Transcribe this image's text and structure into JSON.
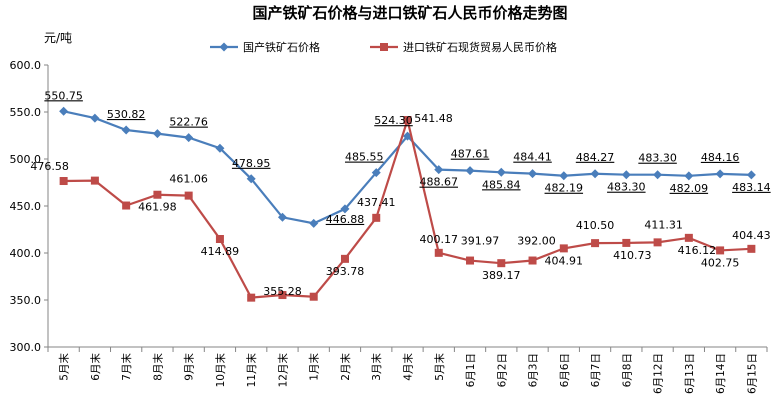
{
  "chart_data": {
    "type": "line",
    "title": "国产铁矿石价格与进口铁矿石人民币价格走势图",
    "ylabel": "元/吨",
    "xlabel": "",
    "ylim": [
      300,
      600
    ],
    "yticks": [
      "300.0",
      "350.0",
      "400.0",
      "450.0",
      "500.0",
      "550.0",
      "600.0"
    ],
    "grid": false,
    "legend_position": "top",
    "categories": [
      "5月末",
      "6月末",
      "7月末",
      "8月末",
      "9月末",
      "10月末",
      "11月末",
      "12月末",
      "1月末",
      "2月末",
      "3月末",
      "4月末",
      "5月末",
      "6月1日",
      "6月2日",
      "6月3日",
      "6月6日",
      "6月7日",
      "6月8日",
      "6月12日",
      "6月13日",
      "6月14日",
      "6月15日"
    ],
    "series": [
      {
        "name": "国产铁矿石价格",
        "color": "#4a7ebb",
        "marker": "diamond",
        "values": [
          550.75,
          543.5,
          530.82,
          527.0,
          522.76,
          511.5,
          478.95,
          438.0,
          431.5,
          446.88,
          485.55,
          524.3,
          488.67,
          487.61,
          485.84,
          484.41,
          482.19,
          484.27,
          483.3,
          483.3,
          482.09,
          484.16,
          483.14
        ],
        "labels": [
          "550.75",
          "",
          "530.82",
          "",
          "522.76",
          "",
          "478.95",
          "",
          "",
          "446.88",
          "485.55",
          "524.30",
          "488.67",
          "487.61",
          "485.84",
          "484.41",
          "482.19",
          "484.27",
          "483.30",
          "483.30",
          "482.09",
          "484.16",
          "483.14"
        ]
      },
      {
        "name": "进口铁矿石现货贸易人民币价格",
        "color": "#be4b48",
        "marker": "square",
        "values": [
          476.58,
          477.0,
          450.5,
          461.98,
          461.06,
          414.89,
          352.5,
          355.28,
          353.5,
          393.78,
          437.41,
          541.48,
          400.17,
          391.97,
          389.17,
          392.0,
          404.91,
          410.5,
          410.73,
          411.31,
          416.12,
          402.75,
          404.43
        ],
        "labels": [
          "476.58",
          "",
          "",
          "461.98",
          "461.06",
          "414.89",
          "",
          "355.28",
          "",
          "393.78",
          "437.41",
          "541.48",
          "400.17",
          "391.97",
          "389.17",
          "392.00",
          "404.91",
          "410.50",
          "410.73",
          "411.31",
          "416.12",
          "402.75",
          "404.43"
        ]
      }
    ]
  }
}
